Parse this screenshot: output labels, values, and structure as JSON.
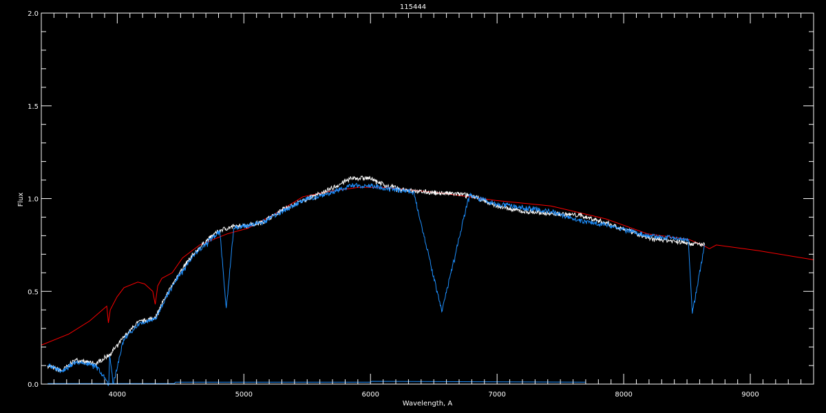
{
  "chart_data": {
    "type": "line",
    "title": "115444",
    "xlabel": "Wavelength, A",
    "ylabel": "Flux",
    "xlim": [
      3400,
      9500
    ],
    "ylim": [
      0.0,
      2.0
    ],
    "x_ticks": [
      4000,
      5000,
      6000,
      7000,
      8000,
      9000
    ],
    "x_tick_labels": [
      "4000",
      "5000",
      "6000",
      "7000",
      "8000",
      "9000"
    ],
    "x_minor_step": 100,
    "y_ticks": [
      0.0,
      0.5,
      1.0,
      1.5,
      2.0
    ],
    "y_tick_labels": [
      "0.0",
      "0.5",
      "1.0",
      "1.5",
      "2.0"
    ],
    "y_minor_step": 0.1,
    "grid": false,
    "background": "#000000",
    "series": [
      {
        "color": "#ff0000",
        "x": [
          3400,
          3618,
          3781,
          3917,
          3930,
          3945,
          3998,
          4053,
          4162,
          4216,
          4280,
          4300,
          4320,
          4352,
          4434,
          4515,
          4651,
          4869,
          5032,
          5250,
          5467,
          5685,
          5903,
          6120,
          6556,
          6991,
          7426,
          7861,
          8188,
          8514,
          8623,
          8677,
          8732,
          9058,
          9500
        ],
        "y": [
          0.21,
          0.27,
          0.34,
          0.42,
          0.33,
          0.4,
          0.47,
          0.52,
          0.55,
          0.54,
          0.5,
          0.43,
          0.53,
          0.57,
          0.6,
          0.68,
          0.75,
          0.81,
          0.84,
          0.92,
          1.01,
          1.04,
          1.06,
          1.06,
          1.03,
          0.99,
          0.96,
          0.89,
          0.81,
          0.78,
          0.75,
          0.73,
          0.75,
          0.72,
          0.67
        ]
      },
      {
        "color": "#ffffff",
        "x": [
          3450,
          3560,
          3670,
          3830,
          3940,
          4050,
          4160,
          4300,
          4380,
          4490,
          4600,
          4700,
          4810,
          4920,
          5140,
          5300,
          5470,
          5680,
          5850,
          6010,
          6120,
          6340,
          6780,
          7000,
          7210,
          7430,
          7650,
          7860,
          8190,
          8510,
          8640
        ],
        "y": [
          0.1,
          0.07,
          0.13,
          0.11,
          0.16,
          0.25,
          0.33,
          0.36,
          0.47,
          0.6,
          0.7,
          0.77,
          0.83,
          0.85,
          0.87,
          0.94,
          0.99,
          1.05,
          1.11,
          1.11,
          1.07,
          1.04,
          1.02,
          0.96,
          0.93,
          0.92,
          0.91,
          0.87,
          0.79,
          0.76,
          0.75
        ]
      },
      {
        "color": "#1e90ff",
        "x": [
          3450,
          3560,
          3670,
          3830,
          3933,
          3940,
          3968,
          4050,
          4160,
          4300,
          4380,
          4490,
          4600,
          4700,
          4810,
          4861,
          4920,
          5140,
          5300,
          5470,
          5680,
          5850,
          6010,
          6120,
          6340,
          6563,
          6780,
          7000,
          7210,
          7430,
          7650,
          7860,
          8190,
          8510,
          8542,
          8640
        ],
        "y": [
          0.1,
          0.07,
          0.12,
          0.1,
          0.0,
          0.15,
          0.0,
          0.24,
          0.32,
          0.35,
          0.46,
          0.59,
          0.69,
          0.76,
          0.82,
          0.41,
          0.84,
          0.87,
          0.93,
          0.99,
          1.03,
          1.07,
          1.07,
          1.05,
          1.04,
          0.39,
          1.02,
          0.97,
          0.95,
          0.93,
          0.88,
          0.86,
          0.8,
          0.78,
          0.38,
          0.75
        ]
      },
      {
        "color": "#1e90ff",
        "x": [
          3450,
          4450,
          4460,
          6000,
          6010,
          7700
        ],
        "y": [
          0.003,
          0.003,
          0.01,
          0.01,
          0.015,
          0.01
        ]
      }
    ]
  }
}
